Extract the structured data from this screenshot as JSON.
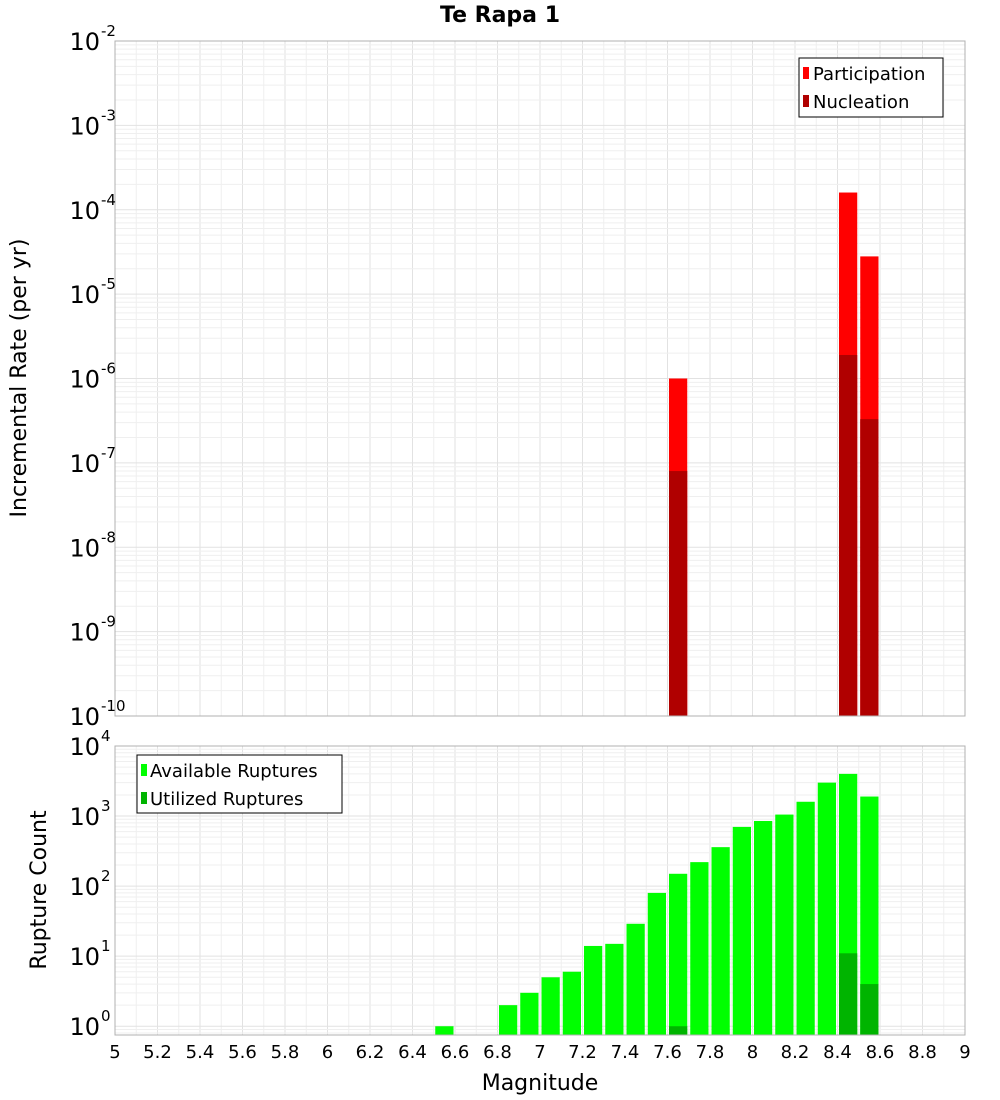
{
  "chart_data": [
    {
      "type": "bar",
      "title": "Te Rapa 1",
      "xlabel": "Magnitude",
      "ylabel": "Incremental Rate (per yr)",
      "yscale": "log",
      "xlim": [
        5,
        9
      ],
      "ylim": [
        1e-10,
        0.01
      ],
      "y_tick_labels": [
        {
          "base": "10",
          "exp": "-2"
        },
        {
          "base": "10",
          "exp": "-3"
        },
        {
          "base": "10",
          "exp": "-4"
        },
        {
          "base": "10",
          "exp": "-5"
        },
        {
          "base": "10",
          "exp": "-6"
        },
        {
          "base": "10",
          "exp": "-7"
        },
        {
          "base": "10",
          "exp": "-8"
        },
        {
          "base": "10",
          "exp": "-9"
        },
        {
          "base": "10",
          "exp": "-10"
        }
      ],
      "bin_width": 0.1,
      "legend_position": "top-right",
      "series": [
        {
          "name": "Participation",
          "color": "#ff0000",
          "x": [
            7.65,
            8.45,
            8.55
          ],
          "values": [
            1e-06,
            0.00016,
            2.8e-05
          ]
        },
        {
          "name": "Nucleation",
          "color": "#b00000",
          "x": [
            7.65,
            8.45,
            8.55
          ],
          "values": [
            8e-08,
            1.9e-06,
            3.3e-07
          ]
        }
      ]
    },
    {
      "type": "bar",
      "title": "",
      "xlabel": "Magnitude",
      "ylabel": "Rupture Count",
      "yscale": "log",
      "xlim": [
        5,
        9
      ],
      "ylim": [
        0.75,
        10000
      ],
      "y_tick_labels": [
        {
          "base": "10",
          "exp": "4"
        },
        {
          "base": "10",
          "exp": "3"
        },
        {
          "base": "10",
          "exp": "2"
        },
        {
          "base": "10",
          "exp": "1"
        },
        {
          "base": "10",
          "exp": "0"
        }
      ],
      "x_tick_labels": [
        "5",
        "5.2",
        "5.4",
        "5.6",
        "5.8",
        "6",
        "6.2",
        "6.4",
        "6.6",
        "6.8",
        "7",
        "7.2",
        "7.4",
        "7.6",
        "7.8",
        "8",
        "8.2",
        "8.4",
        "8.6",
        "8.8",
        "9"
      ],
      "bin_width": 0.1,
      "legend_position": "top-left",
      "series": [
        {
          "name": "Available Ruptures",
          "color": "#00ff00",
          "x": [
            6.55,
            6.85,
            6.95,
            7.05,
            7.15,
            7.25,
            7.35,
            7.45,
            7.55,
            7.65,
            7.75,
            7.85,
            7.95,
            8.05,
            8.15,
            8.25,
            8.35,
            8.45,
            8.55
          ],
          "values": [
            1,
            2,
            3,
            5,
            6,
            14,
            15,
            29,
            80,
            150,
            220,
            360,
            700,
            850,
            1050,
            1600,
            3000,
            4000,
            1900
          ]
        },
        {
          "name": "Utilized Ruptures",
          "color": "#00b400",
          "x": [
            7.65,
            8.45,
            8.55
          ],
          "values": [
            1,
            11,
            4
          ]
        }
      ]
    }
  ]
}
